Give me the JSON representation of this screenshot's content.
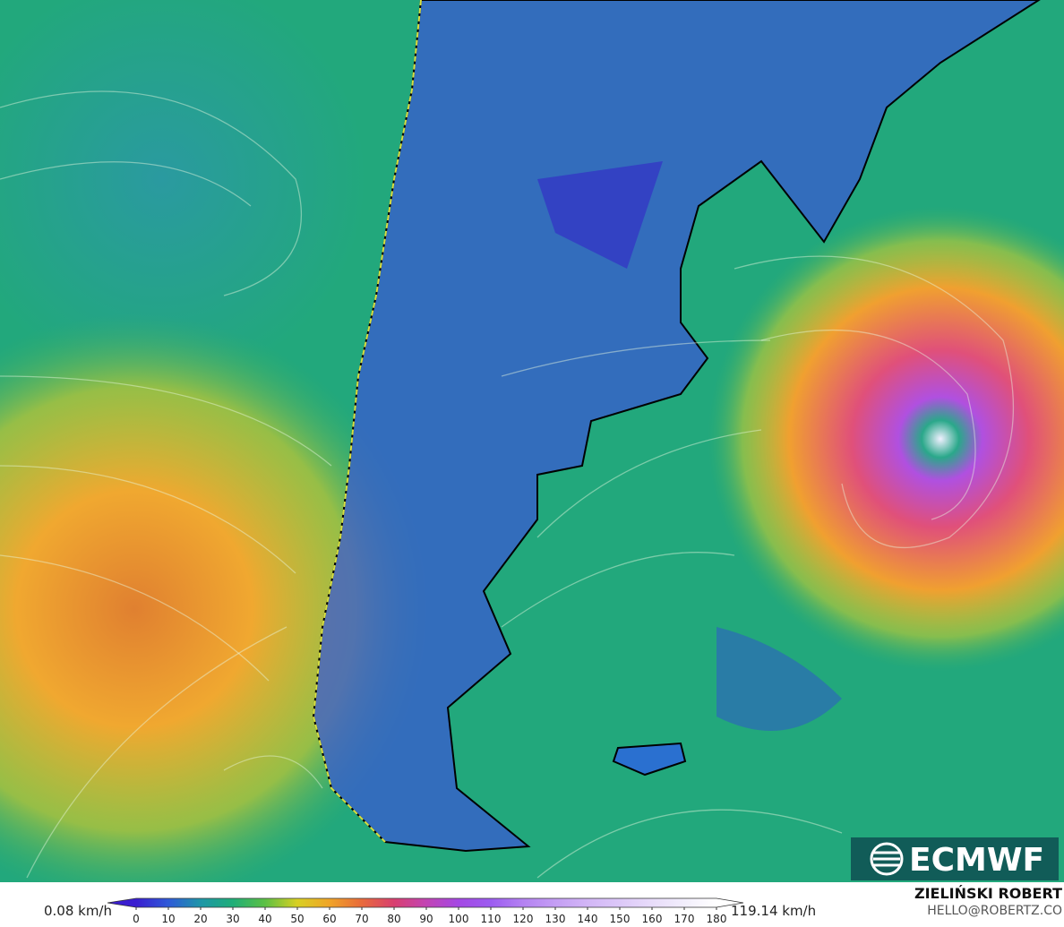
{
  "legend": {
    "min_label": "0.08 km/h",
    "max_label": "119.14 km/h",
    "range": [
      0,
      180
    ],
    "ticks": [
      0,
      10,
      20,
      30,
      40,
      50,
      60,
      70,
      80,
      90,
      100,
      110,
      120,
      130,
      140,
      150,
      160,
      170,
      180
    ],
    "colors": [
      "#3a1ed0",
      "#2f5ad8",
      "#1e96a8",
      "#1fae78",
      "#5cc044",
      "#d8d024",
      "#f0a428",
      "#e86a3c",
      "#d84070",
      "#c244b4",
      "#a448e4",
      "#9c5cf0",
      "#b482f2",
      "#c49ef4",
      "#d2b6f6",
      "#dcc8f8",
      "#e8dcfa",
      "#f2eefc",
      "#ffffff"
    ]
  },
  "logo": "ECMWF",
  "credit": {
    "name": "ZIELIŃSKI ROBERT",
    "email": "HELLO@ROBERTZ.CO"
  }
}
